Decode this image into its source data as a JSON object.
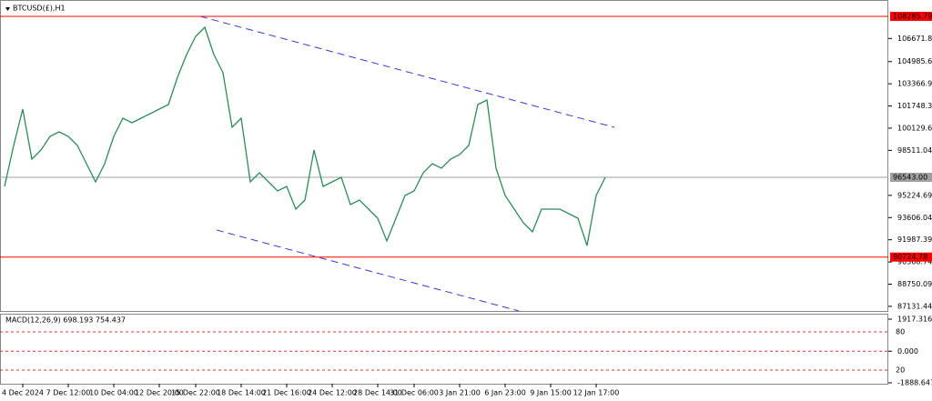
{
  "chart_data": {
    "type": "line",
    "title": "BTCUSD(£),H1",
    "categories": [
      null,
      null,
      "4 Dec 2024",
      null,
      null,
      null,
      null,
      "7 Dec 12:00",
      null,
      null,
      null,
      null,
      "10 Dec 04:00",
      null,
      null,
      null,
      null,
      "12 Dec 20:00",
      null,
      null,
      null,
      "15 Dec 22:00",
      null,
      null,
      null,
      null,
      "18 Dec 14:00",
      null,
      null,
      null,
      null,
      "21 Dec 16:00",
      null,
      null,
      null,
      null,
      "24 Dec 12:00",
      null,
      null,
      null,
      null,
      "28 Dec 14:00",
      null,
      null,
      null,
      "31 Dec 06:00",
      null,
      null,
      null,
      null,
      "3 Jan 21:00",
      null,
      null,
      null,
      null,
      "6 Jan 23:00",
      null,
      null,
      null,
      null,
      "9 Jan 15:00",
      null,
      null,
      null,
      null,
      "12 Jan 17:00",
      null
    ],
    "series": [
      {
        "color": "#2e8b57",
        "values": [
          95880,
          98866,
          101519,
          97871,
          98534,
          99529,
          99861,
          99529,
          98866,
          97539,
          96212,
          97539,
          99529,
          100856,
          100524,
          100856,
          101188,
          101519,
          101851,
          103841,
          105500,
          106827,
          107490,
          105500,
          104173,
          100193,
          100856,
          96212,
          96876,
          96212,
          95549,
          95880,
          94222,
          94885,
          98534,
          95880,
          96212,
          96544,
          94554,
          94885,
          94222,
          93559,
          91900,
          93559,
          95217,
          95549,
          96876,
          97539,
          97207,
          97871,
          98202,
          98866,
          101851,
          102183,
          97207,
          95217,
          94222,
          93227,
          92563,
          94222,
          94222,
          94222,
          93890,
          93559,
          91568,
          95217,
          96544
        ]
      }
    ],
    "ylim": [
      86925,
      108816
    ],
    "yticks": [
      {
        "value": 106671.8,
        "label": "106671.80"
      },
      104985.64,
      103366.99,
      101748.34,
      100129.69,
      98511.04,
      95224.69,
      93606.04,
      91987.39,
      90368.74,
      88750.09,
      87131.44
    ],
    "levels": [
      {
        "value": 108285.79,
        "label": "108285.79",
        "color": "#ff0000"
      },
      {
        "value": 96543,
        "label": "96543.00",
        "color": "#a0a0a0"
      },
      {
        "value": 90724.78,
        "label": "90724.78",
        "color": "#ff0000"
      }
    ],
    "macd": {
      "label": "MACD(12,26,9) 698.193 754.437",
      "ylim": [
        -1888.647,
        1917.316
      ],
      "yticks": [
        1917.316,
        {
          "value": 0,
          "label": "0.000"
        },
        -1888.647
      ],
      "levels_range": [
        0,
        100
      ],
      "levels": [
        80,
        20
      ]
    }
  }
}
